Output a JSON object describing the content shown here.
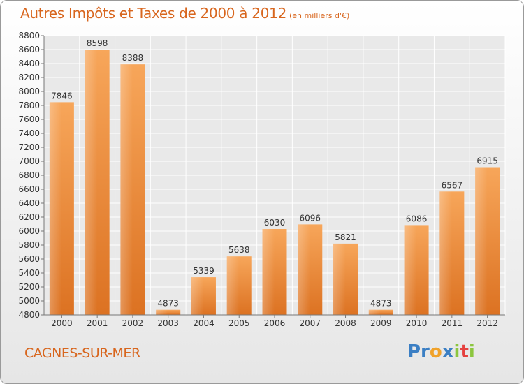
{
  "header": {
    "title": "Autres Impôts et Taxes de 2000 à 2012",
    "subtitle": "(en milliers d'€)"
  },
  "footer": {
    "commune": "CAGNES-SUR-MER",
    "logo": {
      "parts": [
        {
          "text": "Pr",
          "color": "#3b7fc4"
        },
        {
          "text": "o",
          "color": "#f0a22a"
        },
        {
          "text": "x",
          "color": "#3b7fc4"
        },
        {
          "text": "i",
          "color": "#8cc63f"
        },
        {
          "text": "t",
          "color": "#e5413f"
        },
        {
          "text": "i",
          "color": "#8cc63f"
        }
      ]
    }
  },
  "colors": {
    "accent": "#d8661e",
    "bar_light": "#f7a65a",
    "bar_dark": "#e07826",
    "grid": "#ffffff",
    "plot_bg": "#e9e9e9"
  },
  "chart_data": {
    "type": "bar",
    "title": "Autres Impôts et Taxes de 2000 à 2012",
    "subtitle": "(en milliers d'€)",
    "xlabel": "",
    "ylabel": "",
    "categories": [
      "2000",
      "2001",
      "2002",
      "2003",
      "2004",
      "2005",
      "2006",
      "2007",
      "2008",
      "2009",
      "2010",
      "2011",
      "2012"
    ],
    "values": [
      7846,
      8598,
      8388,
      4873,
      5339,
      5638,
      6030,
      6096,
      5821,
      4873,
      6086,
      6567,
      6915
    ],
    "ylim": [
      4800,
      8800
    ],
    "yticks": [
      4800,
      5000,
      5200,
      5400,
      5600,
      5800,
      6000,
      6200,
      6400,
      6600,
      6800,
      7000,
      7200,
      7400,
      7600,
      7800,
      8000,
      8200,
      8400,
      8600,
      8800
    ],
    "grid": true,
    "legend": "none"
  }
}
